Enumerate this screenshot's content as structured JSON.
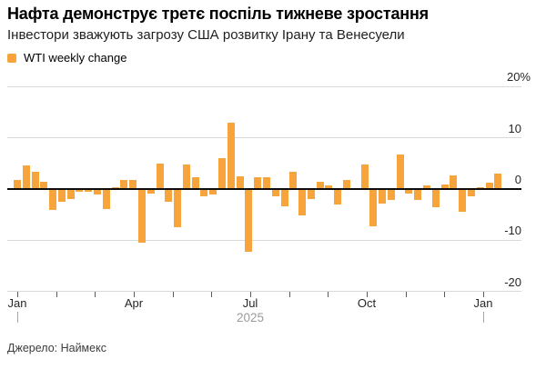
{
  "header": {
    "title": "Нафта демонструє третє поспіль тижневе зростання",
    "subtitle": "Інвестори зважують загрозу США розвитку Ірану та Венесуели"
  },
  "legend": {
    "label": "WTI weekly change"
  },
  "footer": {
    "source": "Джерело: Наймекс"
  },
  "colors": {
    "bar": "#f7a43c",
    "grid": "#d9d9d9",
    "zero_line": "#0d0d0d",
    "axis_text": "#262626",
    "muted_text": "#9b9b9b",
    "tick": "#5a5a5a"
  },
  "chart_data": {
    "type": "bar",
    "title": "Нафта демонструє третє поспіль тижневе зростання",
    "subtitle": "Інвестори зважують загрозу США розвитку Ірану та Венесуели",
    "series_name": "WTI weekly change",
    "unit": "%",
    "grid": true,
    "legend_position": "top-left",
    "ylim": [
      -20,
      20
    ],
    "y_axis": {
      "side": "right",
      "ticks": [
        {
          "label": "20%",
          "value": 20
        },
        {
          "label": "10",
          "value": 10
        },
        {
          "label": "0",
          "value": 0
        },
        {
          "label": "-10",
          "value": -10
        },
        {
          "label": "-20",
          "value": -20
        }
      ]
    },
    "x_axis": {
      "description": "weekly bars from Jan 2025 to mid-Jan 2026, monthly tick marks",
      "month_tick_count": 14,
      "labels": [
        {
          "label": "Jan",
          "month": 0
        },
        {
          "label": "Apr",
          "month": 3
        },
        {
          "label": "Jul",
          "month": 6
        },
        {
          "label": "Oct",
          "month": 9
        },
        {
          "label": "Jan",
          "month": 12
        }
      ],
      "year_boundaries_months": [
        0,
        12
      ],
      "year_label": {
        "label": "2025",
        "center_month": 6
      }
    },
    "values": [
      1.7,
      4.6,
      3.4,
      1.5,
      -4.1,
      -2.5,
      -2.0,
      -0.6,
      -0.5,
      -1.1,
      -3.9,
      0.3,
      1.7,
      1.7,
      -10.5,
      -0.9,
      4.9,
      -2.4,
      -7.4,
      4.8,
      2.3,
      -1.5,
      -1.1,
      6.1,
      12.9,
      2.5,
      -12.3,
      2.3,
      2.3,
      -1.5,
      -3.3,
      3.3,
      -5.2,
      -1.9,
      1.5,
      0.7,
      -3.0,
      1.7,
      0.05,
      4.8,
      -7.3,
      -2.9,
      -2.1,
      6.7,
      -0.9,
      -2.1,
      0.7,
      -3.6,
      0.9,
      2.6,
      -4.4,
      -1.4,
      0.3,
      1.2,
      3.1
    ]
  }
}
